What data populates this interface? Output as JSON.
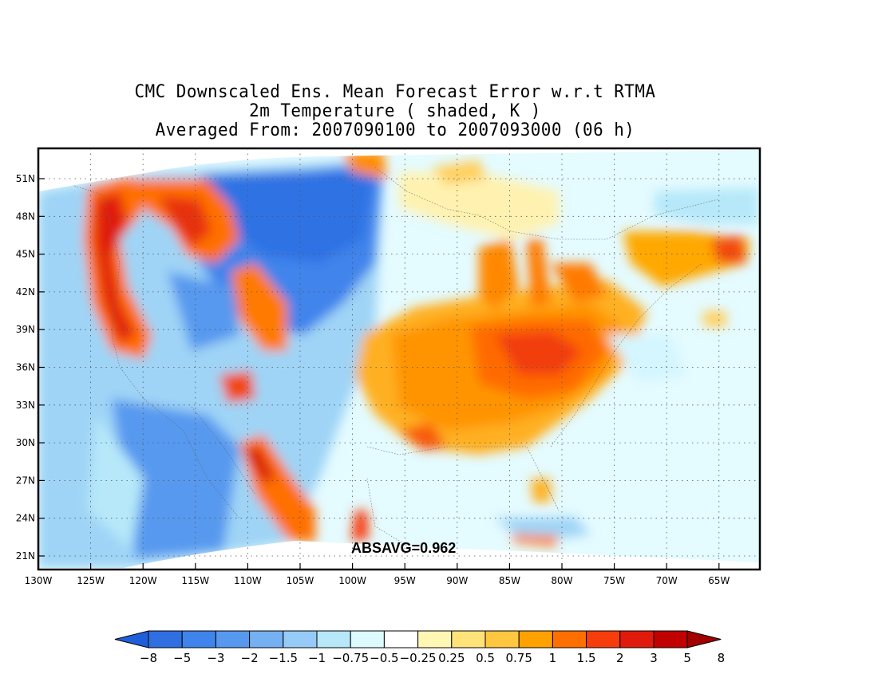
{
  "title": {
    "line1": "CMC Downscaled Ens. Mean Forecast Error w.r.t RTMA",
    "line2": "2m Temperature ( shaded, K )",
    "line3": "Averaged From: 2007090100 to 2007093000 (06 h)"
  },
  "annotation": "ABSAVG=0.962",
  "axes": {
    "lon_labels": [
      "130W",
      "125W",
      "120W",
      "115W",
      "110W",
      "105W",
      "100W",
      "95W",
      "90W",
      "85W",
      "80W",
      "75W",
      "70W",
      "65W"
    ],
    "lat_labels": [
      "51N",
      "48N",
      "45N",
      "42N",
      "39N",
      "36N",
      "33N",
      "30N",
      "27N",
      "24N",
      "21N"
    ],
    "grid": "dotted"
  },
  "colorbar": {
    "labels": [
      "−8",
      "−5",
      "−3",
      "−2",
      "−1.5",
      "−1",
      "−0.75",
      "−0.5",
      "−0.25",
      "0.25",
      "0.5",
      "0.75",
      "1",
      "1.5",
      "2",
      "3",
      "5",
      "8"
    ],
    "colors": [
      "#1f5fd9",
      "#2f6fe2",
      "#3f84ec",
      "#5699ef",
      "#75b0f3",
      "#96cbf7",
      "#b6e8f9",
      "#ddfbff",
      "#ffffff",
      "#fff8b4",
      "#ffe27a",
      "#ffc640",
      "#ffa200",
      "#ff6f00",
      "#f83d0c",
      "#e01b0b",
      "#c20000",
      "#a30000"
    ]
  },
  "map_colors": {
    "water_blank": "#ffffff",
    "coast": "#555555"
  }
}
